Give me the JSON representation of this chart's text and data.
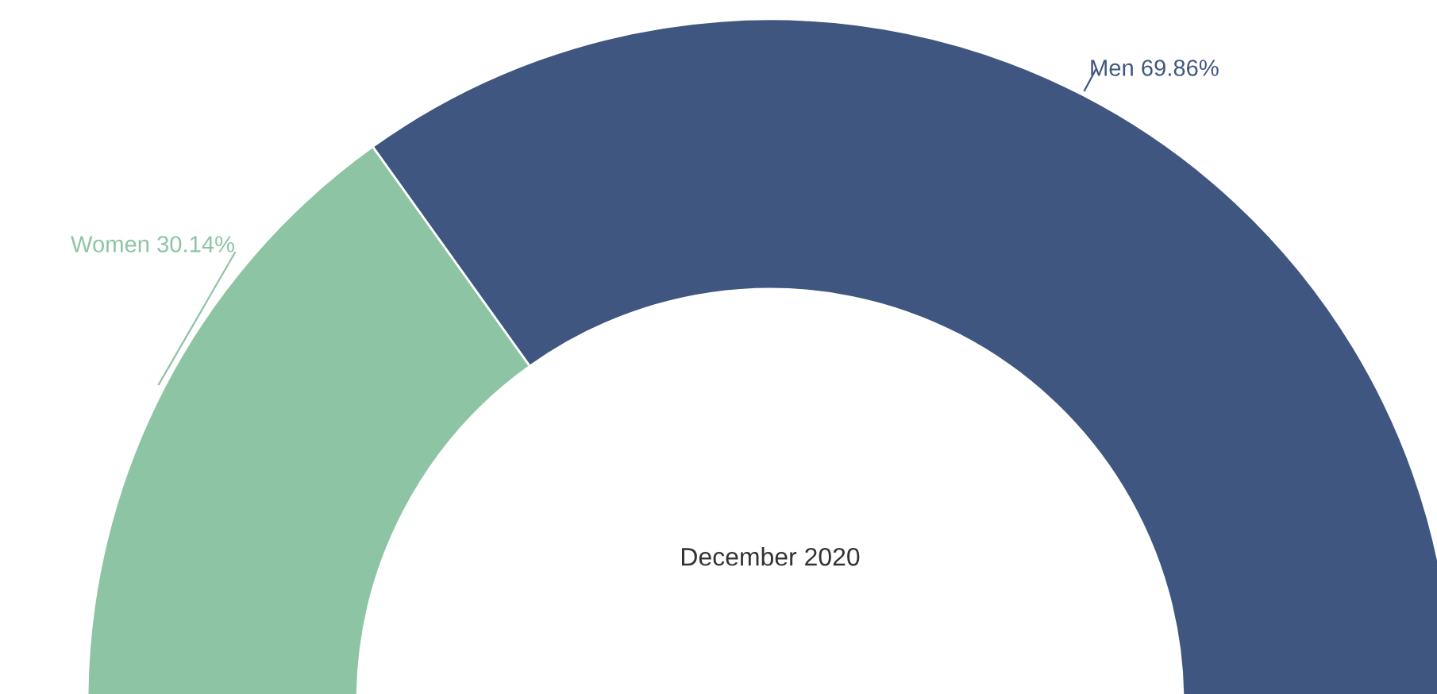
{
  "chart_data": {
    "type": "donut",
    "title": "December 2020",
    "categories": [
      "Men",
      "Women"
    ],
    "values": [
      69.86,
      30.14
    ],
    "value_labels": [
      "69.86%",
      "30.14%"
    ],
    "colors": [
      "#3f5680",
      "#8cc4a4"
    ],
    "legend": false
  }
}
